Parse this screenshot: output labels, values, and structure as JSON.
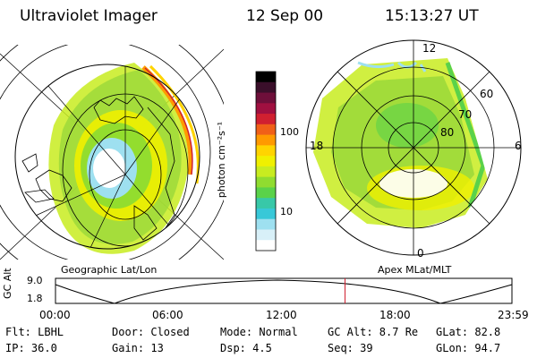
{
  "header": {
    "instrument": "Ultraviolet Imager",
    "date": "12 Sep 00",
    "time": "15:13:27 UT"
  },
  "left_map": {
    "caption": "Geographic Lat/Lon"
  },
  "right_map": {
    "caption": "Apex MLat/MLT",
    "mlt_labels": {
      "top": "12",
      "left": "18",
      "right": "6",
      "bottom": "0"
    },
    "lat_labels": [
      "60",
      "70",
      "80"
    ]
  },
  "colorbar": {
    "unit_label": "photon cm⁻²s⁻¹",
    "ticks": [
      "100",
      "10"
    ],
    "colors": [
      "#000000",
      "#3a0f2a",
      "#6e0f3a",
      "#a01040",
      "#d02030",
      "#f06018",
      "#ff9a00",
      "#ffd400",
      "#f0f000",
      "#c8ec20",
      "#90dc30",
      "#5ad24a",
      "#38c8a8",
      "#38c8d8",
      "#9ee0f0",
      "#d8f0f8",
      "#ffffff"
    ]
  },
  "timeline": {
    "ylabel": "GC Alt",
    "yticks": [
      "9.0",
      "1.8"
    ],
    "xticks": [
      "00:00",
      "06:00",
      "12:00",
      "18:00",
      "23:59"
    ],
    "current_time_fraction": 0.6343
  },
  "footer": {
    "rows": [
      [
        "Flt: LBHL",
        "Door: Closed",
        "Mode: Normal",
        "GC Alt: 8.7 Re",
        "GLat:  82.8"
      ],
      [
        "IP: 36.0",
        "Gain: 13",
        "Dsp:     4.5",
        "Seq: 39",
        "GLon:  94.7"
      ]
    ]
  }
}
